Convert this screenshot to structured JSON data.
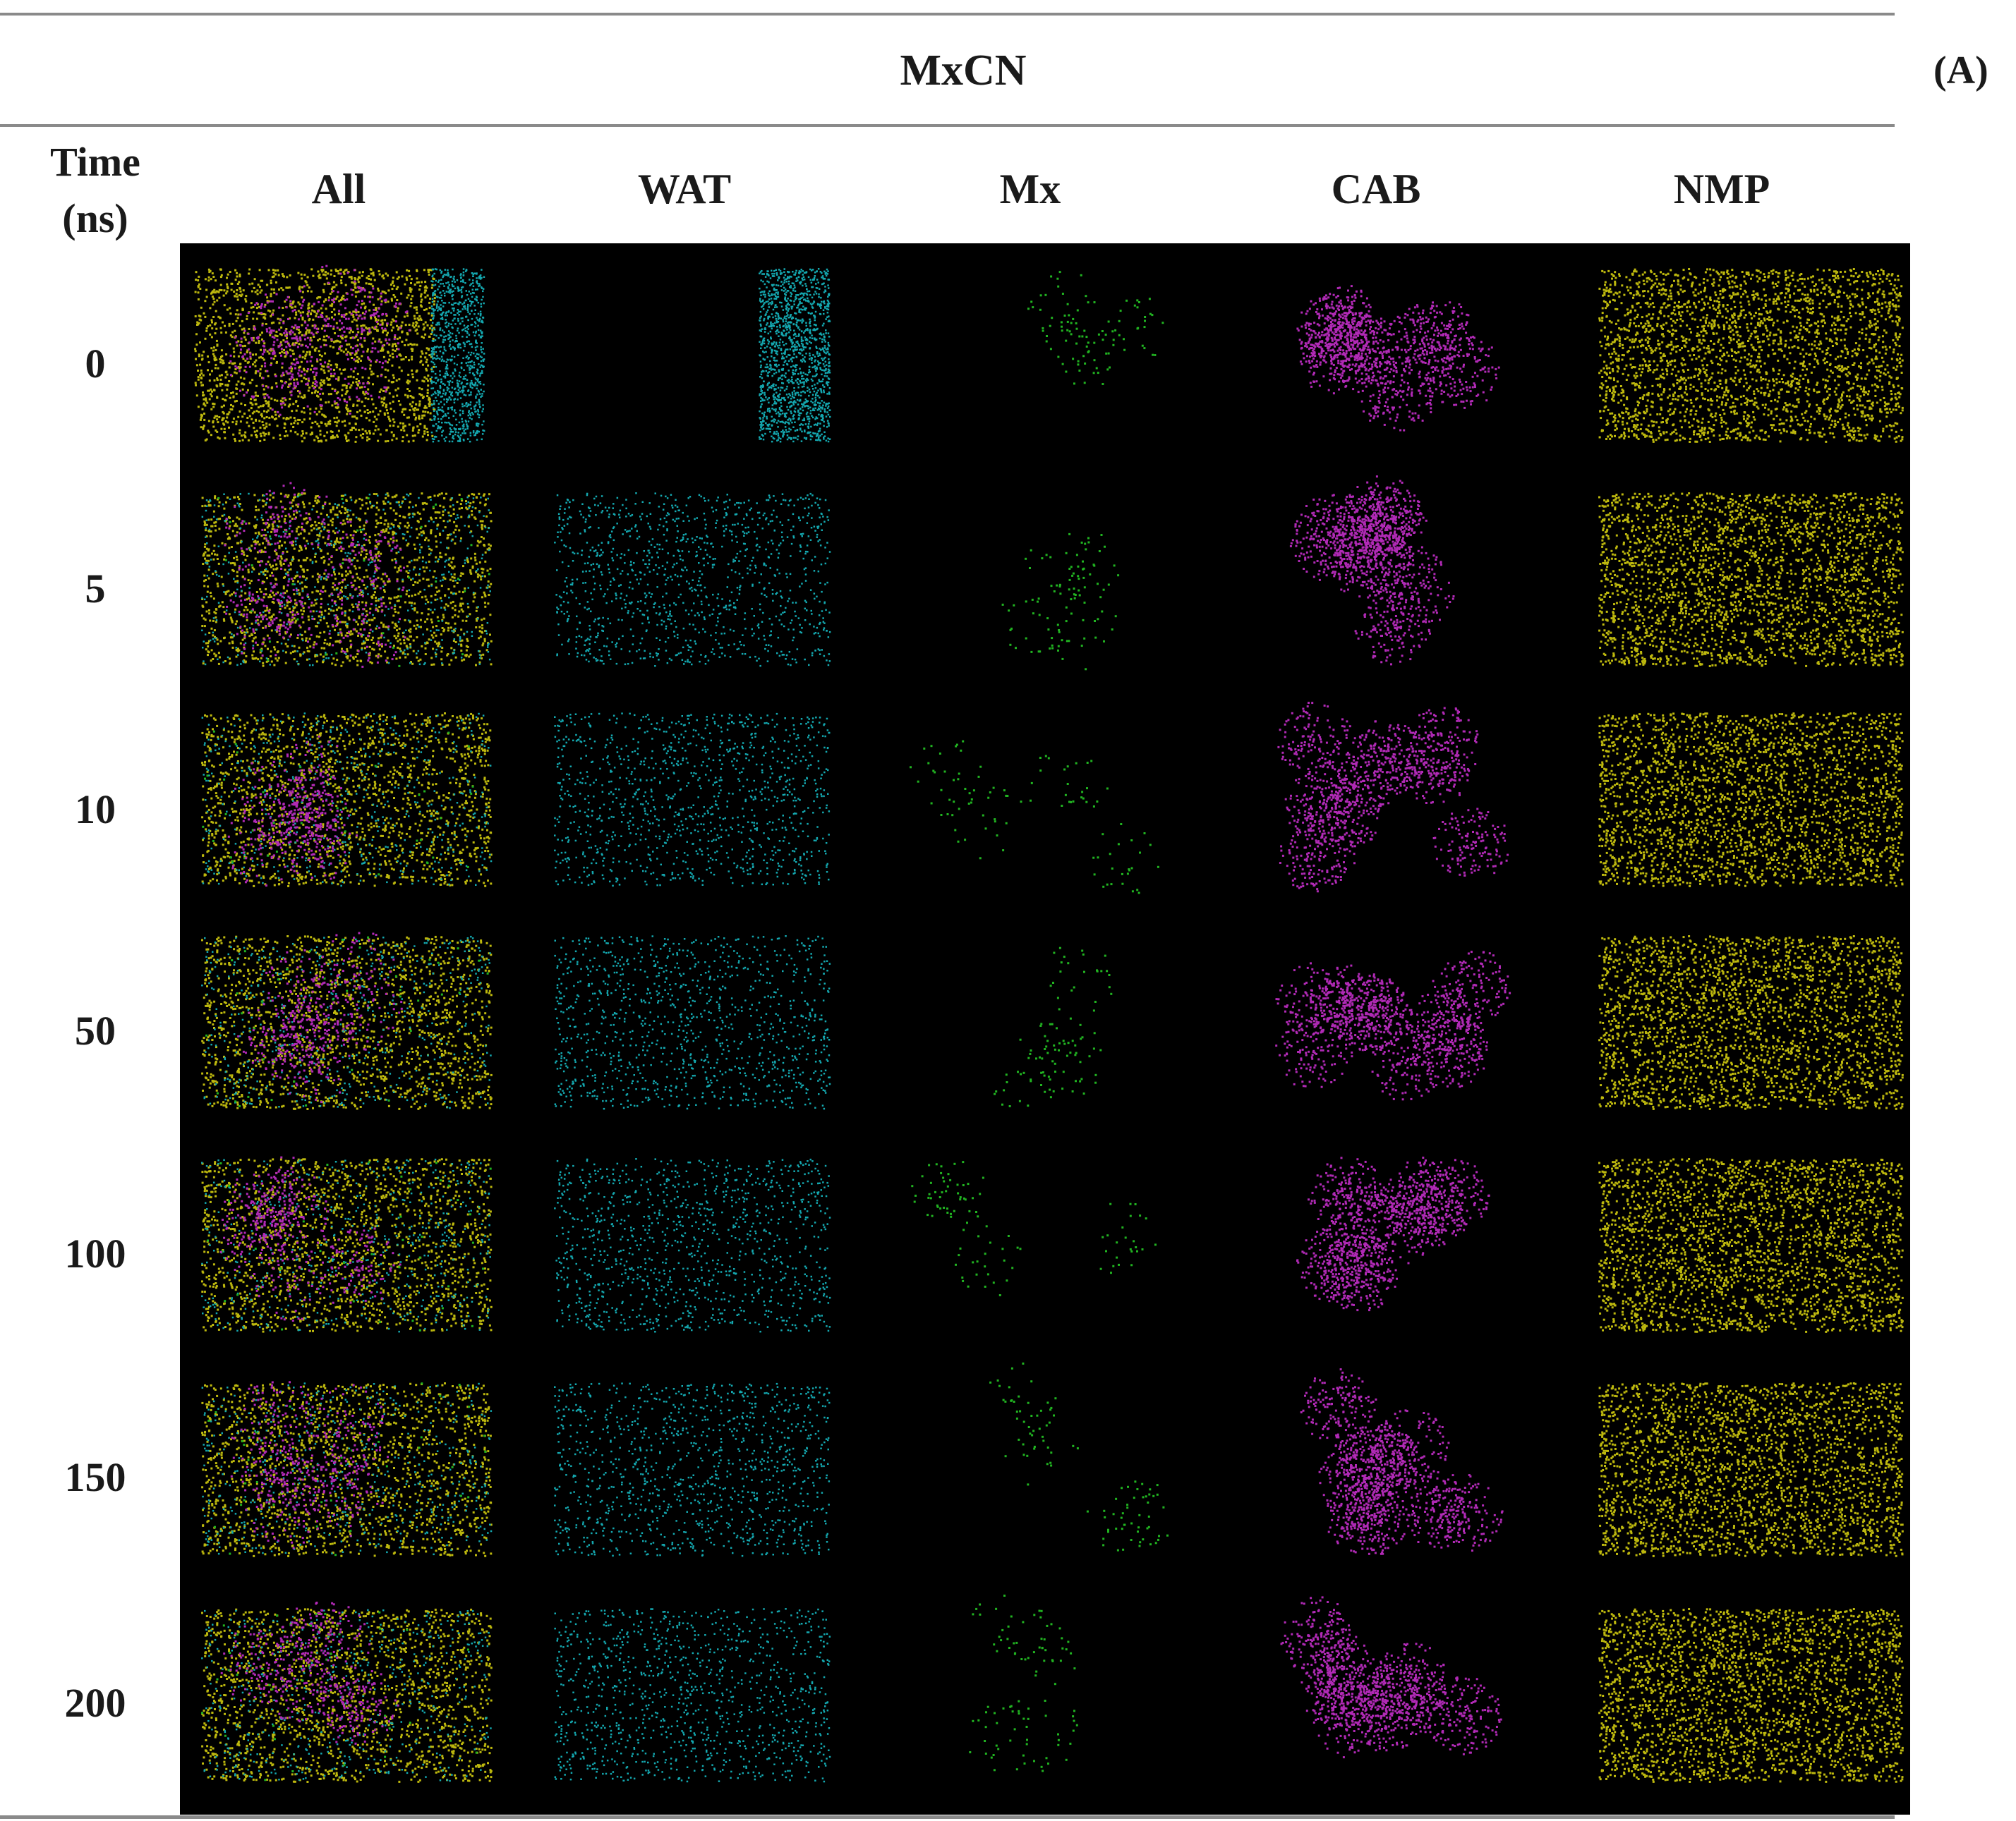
{
  "figure": {
    "title": "MxCN",
    "panel_label": "(A)",
    "time_header": [
      "Time",
      "(ns)"
    ],
    "columns": [
      "All",
      "WAT",
      "Mx",
      "CAB",
      "NMP"
    ],
    "rows": [
      "0",
      "5",
      "10",
      "50",
      "100",
      "150",
      "200"
    ]
  },
  "component_colors": {
    "WAT": "#14a8b0",
    "Mx": "#21b321",
    "CAB": "#b12ab6",
    "NMP": "#bdb80e"
  },
  "background_color": "#000000"
}
